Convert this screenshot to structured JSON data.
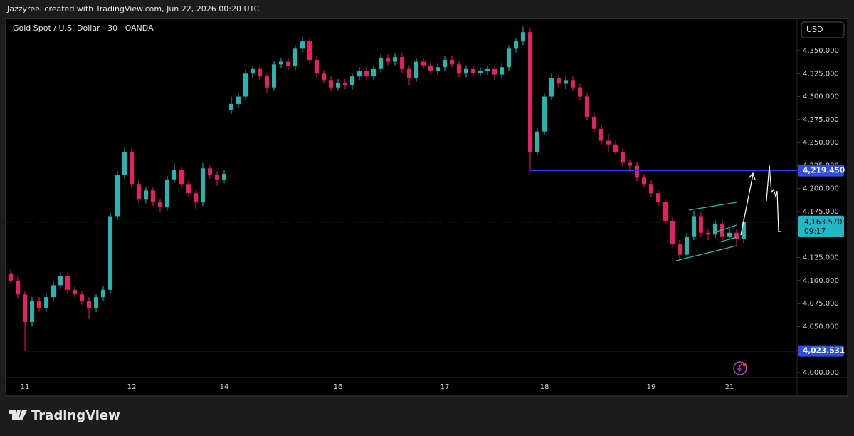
{
  "header": "Jazzyreel created with TradingView.com, Jun 22, 2026 00:20 UTC",
  "footer_brand": "TradingView",
  "chart_data": {
    "type": "candlestick",
    "title": "Gold Spot / U.S. Dollar · 30 · OANDA",
    "currency": "USD",
    "up_color": "#26b5b0",
    "down_color": "#e91e63",
    "categories": [
      null,
      null,
      "11",
      null,
      null,
      null,
      null,
      null,
      null,
      null,
      null,
      null,
      null,
      null,
      null,
      null,
      null,
      "12",
      null,
      null,
      null,
      null,
      null,
      null,
      null,
      null,
      null,
      null,
      null,
      null,
      "14",
      null,
      null,
      null,
      null,
      null,
      null,
      null,
      null,
      null,
      null,
      null,
      null,
      null,
      null,
      null,
      "16",
      null,
      null,
      null,
      null,
      null,
      null,
      null,
      null,
      null,
      null,
      null,
      null,
      null,
      null,
      "17",
      null,
      null,
      null,
      null,
      null,
      null,
      null,
      null,
      null,
      null,
      null,
      null,
      null,
      "18",
      null,
      null,
      null,
      null,
      null,
      null,
      null,
      null,
      null,
      null,
      null,
      null,
      null,
      null,
      "19",
      null,
      null,
      null,
      null,
      null,
      null,
      null,
      null,
      null,
      null,
      "21",
      null,
      null
    ],
    "open": [
      4108,
      4100,
      4085,
      4055,
      4078,
      4070,
      4082,
      4095,
      4105,
      4090,
      4085,
      4078,
      4070,
      4082,
      4090,
      4170,
      4215,
      4240,
      4205,
      4188,
      4198,
      4185,
      4180,
      4210,
      4220,
      4205,
      4195,
      4185,
      4222,
      4215,
      4210,
      4285,
      4292,
      4300,
      4325,
      4330,
      4322,
      4310,
      4335,
      4338,
      4333,
      4352,
      4360,
      4340,
      4325,
      4318,
      4310,
      4315,
      4312,
      4322,
      4328,
      4322,
      4330,
      4342,
      4338,
      4343,
      4330,
      4320,
      4338,
      4334,
      4328,
      4332,
      4340,
      4335,
      4325,
      4330,
      4326,
      4328,
      4330,
      4324,
      4332,
      4352,
      4360,
      4370,
      4240,
      4262,
      4300,
      4320,
      4314,
      4318,
      4310,
      4300,
      4278,
      4265,
      4252,
      4248,
      4240,
      4228,
      4225,
      4212,
      4205,
      4195,
      4185,
      4165,
      4140,
      4128,
      4148,
      4170,
      4152,
      4150,
      4162,
      4148,
      4152,
      4145
    ],
    "high": [
      4112,
      4104,
      4089,
      4082,
      4082,
      4086,
      4099,
      4109,
      4109,
      4094,
      4089,
      4082,
      4086,
      4094,
      4174,
      4219,
      4245,
      4244,
      4209,
      4202,
      4202,
      4189,
      4214,
      4228,
      4224,
      4209,
      4199,
      4228,
      4226,
      4219,
      4220,
      4300,
      4304,
      4329,
      4334,
      4334,
      4326,
      4339,
      4342,
      4342,
      4356,
      4365,
      4364,
      4344,
      4329,
      4322,
      4319,
      4319,
      4326,
      4332,
      4332,
      4334,
      4346,
      4346,
      4347,
      4347,
      4334,
      4342,
      4342,
      4338,
      4336,
      4344,
      4344,
      4339,
      4334,
      4334,
      4332,
      4334,
      4334,
      4336,
      4356,
      4364,
      4376,
      4374,
      4266,
      4304,
      4326,
      4324,
      4322,
      4322,
      4314,
      4304,
      4282,
      4269,
      4260,
      4252,
      4244,
      4232,
      4229,
      4216,
      4209,
      4199,
      4189,
      4169,
      4144,
      4152,
      4176,
      4174,
      4156,
      4166,
      4166,
      4156,
      4156,
      4168
    ],
    "low": [
      4096,
      4081,
      4023.531,
      4051,
      4066,
      4066,
      4078,
      4091,
      4086,
      4081,
      4074,
      4058,
      4066,
      4078,
      4086,
      4166,
      4211,
      4201,
      4184,
      4184,
      4181,
      4175,
      4176,
      4206,
      4201,
      4191,
      4178,
      4181,
      4211,
      4203,
      4206,
      4281,
      4288,
      4296,
      4321,
      4318,
      4304,
      4306,
      4331,
      4329,
      4329,
      4348,
      4336,
      4321,
      4314,
      4306,
      4306,
      4308,
      4308,
      4318,
      4318,
      4318,
      4326,
      4334,
      4334,
      4326,
      4312,
      4316,
      4330,
      4324,
      4324,
      4328,
      4331,
      4321,
      4321,
      4322,
      4322,
      4324,
      4318,
      4320,
      4328,
      4348,
      4356,
      4219,
      4236,
      4258,
      4296,
      4310,
      4308,
      4306,
      4296,
      4274,
      4261,
      4248,
      4240,
      4236,
      4224,
      4218,
      4208,
      4201,
      4191,
      4181,
      4161,
      4136,
      4121,
      4124,
      4144,
      4148,
      4144,
      4146,
      4144,
      4144,
      4138,
      4141
    ],
    "close": [
      4100,
      4085,
      4055,
      4078,
      4070,
      4082,
      4095,
      4105,
      4090,
      4085,
      4078,
      4070,
      4082,
      4090,
      4170,
      4215,
      4240,
      4205,
      4188,
      4198,
      4185,
      4180,
      4210,
      4220,
      4205,
      4195,
      4185,
      4222,
      4215,
      4210,
      4216,
      4292,
      4300,
      4325,
      4330,
      4322,
      4310,
      4335,
      4338,
      4333,
      4352,
      4360,
      4340,
      4325,
      4318,
      4310,
      4315,
      4312,
      4322,
      4328,
      4322,
      4330,
      4342,
      4338,
      4343,
      4330,
      4320,
      4338,
      4334,
      4328,
      4332,
      4340,
      4335,
      4325,
      4330,
      4326,
      4328,
      4330,
      4324,
      4332,
      4352,
      4360,
      4370,
      4240,
      4262,
      4300,
      4320,
      4314,
      4318,
      4310,
      4300,
      4278,
      4265,
      4252,
      4248,
      4240,
      4228,
      4225,
      4212,
      4205,
      4195,
      4185,
      4165,
      4140,
      4128,
      4148,
      4170,
      4152,
      4150,
      4162,
      4148,
      4152,
      4145,
      4163.57
    ],
    "ylim": [
      3994.6,
      4383.3
    ],
    "yticks": [
      {
        "value": 4000,
        "label": "4,000.000"
      },
      {
        "value": 4025,
        "label": "4,025.000"
      },
      {
        "value": 4050,
        "label": "4,050.000"
      },
      {
        "value": 4075,
        "label": "4,075.000"
      },
      {
        "value": 4100,
        "label": "4,100.000"
      },
      {
        "value": 4125,
        "label": "4,125.000"
      },
      {
        "value": 4150,
        "label": "4,150.000"
      },
      {
        "value": 4175,
        "label": "4,175.000"
      },
      {
        "value": 4200,
        "label": "4,200.000"
      },
      {
        "value": 4225,
        "label": "4,225.000"
      },
      {
        "value": 4250,
        "label": "4,250.000"
      },
      {
        "value": 4275,
        "label": "4,275.000"
      },
      {
        "value": 4300,
        "label": "4,300.000"
      },
      {
        "value": 4325,
        "label": "4,325.000"
      },
      {
        "value": 4350,
        "label": "4,350.000"
      }
    ],
    "price_lines": [
      {
        "value": 4219.45,
        "label": "4,219.450"
      },
      {
        "value": 4023.531,
        "label": "4,023.531"
      }
    ],
    "last_price": {
      "value": 4163.57,
      "label": "4,163.570",
      "countdown": "09:17"
    }
  }
}
